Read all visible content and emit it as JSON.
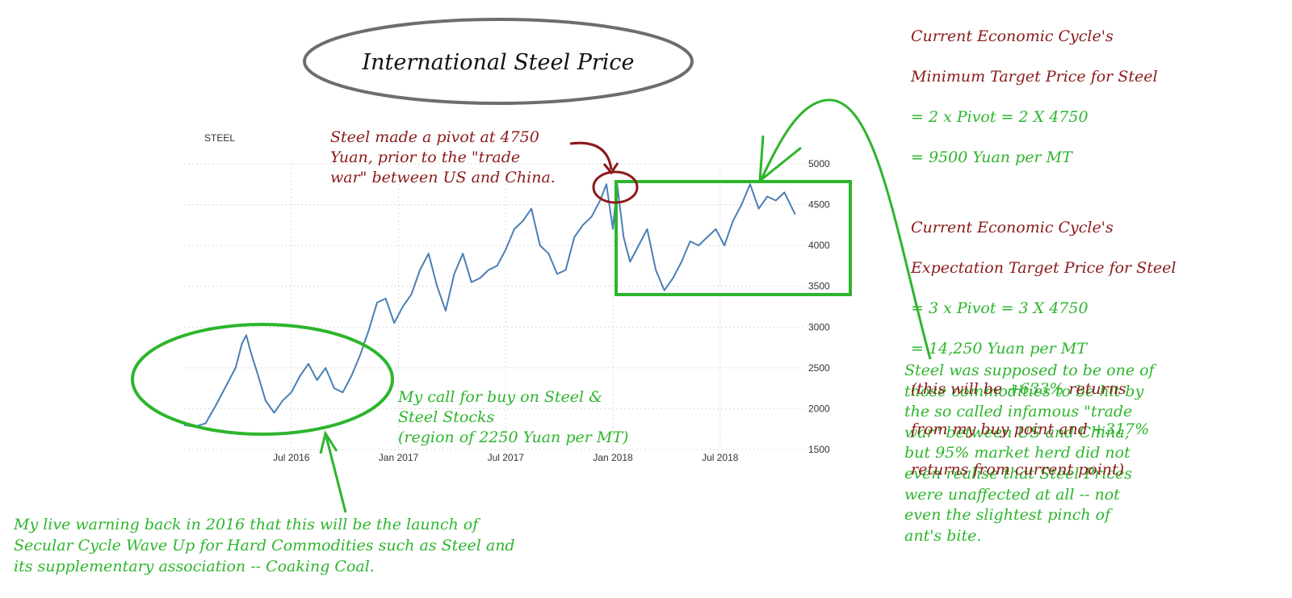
{
  "colors": {
    "line": "#4a7fb5",
    "grid": "#d8d8d8",
    "green": "#2db52d",
    "red": "#8b1a1a",
    "text": "#333333"
  },
  "chart_data": {
    "type": "line",
    "title": "International Steel Price",
    "series_label": "STEEL",
    "xlabel": "",
    "ylabel": "",
    "ylim": [
      1500,
      5000
    ],
    "yticks": [
      1500,
      2000,
      2500,
      3000,
      3500,
      4000,
      4500,
      5000
    ],
    "xlim": [
      2016.0,
      2018.87
    ],
    "xticks": [
      {
        "label": "Jul 2016",
        "x": 2016.5
      },
      {
        "label": "Jan 2017",
        "x": 2017.0
      },
      {
        "label": "Jul 2017",
        "x": 2017.5
      },
      {
        "label": "Jan 2018",
        "x": 2018.0
      },
      {
        "label": "Jul 2018",
        "x": 2018.5
      }
    ],
    "series": [
      {
        "name": "STEEL",
        "x": [
          2016.0,
          2016.05,
          2016.1,
          2016.15,
          2016.2,
          2016.24,
          2016.27,
          2016.29,
          2016.31,
          2016.34,
          2016.38,
          2016.42,
          2016.46,
          2016.5,
          2016.54,
          2016.58,
          2016.62,
          2016.66,
          2016.7,
          2016.74,
          2016.78,
          2016.82,
          2016.86,
          2016.9,
          2016.94,
          2016.98,
          2017.02,
          2017.06,
          2017.1,
          2017.14,
          2017.18,
          2017.22,
          2017.26,
          2017.3,
          2017.34,
          2017.38,
          2017.42,
          2017.46,
          2017.5,
          2017.54,
          2017.58,
          2017.62,
          2017.66,
          2017.7,
          2017.74,
          2017.78,
          2017.82,
          2017.86,
          2017.9,
          2017.94,
          2017.97,
          2018.0,
          2018.02,
          2018.05,
          2018.08,
          2018.12,
          2018.16,
          2018.2,
          2018.24,
          2018.28,
          2018.32,
          2018.36,
          2018.4,
          2018.44,
          2018.48,
          2018.52,
          2018.56,
          2018.6,
          2018.64,
          2018.68,
          2018.72,
          2018.76,
          2018.8,
          2018.85
        ],
        "values": [
          1800,
          1780,
          1820,
          2050,
          2300,
          2500,
          2800,
          2900,
          2700,
          2450,
          2100,
          1950,
          2100,
          2200,
          2400,
          2550,
          2350,
          2500,
          2250,
          2200,
          2400,
          2650,
          2950,
          3300,
          3350,
          3050,
          3250,
          3400,
          3700,
          3900,
          3500,
          3200,
          3650,
          3900,
          3550,
          3600,
          3700,
          3750,
          3950,
          4200,
          4300,
          4450,
          4000,
          3900,
          3650,
          3700,
          4100,
          4250,
          4350,
          4550,
          4750,
          4200,
          4750,
          4100,
          3800,
          4000,
          4200,
          3700,
          3450,
          3600,
          3800,
          4050,
          4000,
          4100,
          4200,
          4000,
          4300,
          4500,
          4750,
          4450,
          4600,
          4550,
          4650,
          4380
        ]
      }
    ]
  },
  "annotations": {
    "target_block": {
      "l1": "Current Economic Cycle's",
      "l2": "Minimum Target Price for Steel",
      "l3": "= 2 x Pivot = 2 X 4750",
      "l4": "= 9500 Yuan per MT",
      "l5": "Current Economic Cycle's",
      "l6": "Expectation Target Price for Steel",
      "l7": "= 3 x Pivot = 3 X 4750",
      "l8": "= 14,250 Yuan per MT",
      "l9a": "(this will be ",
      "l9b": "+633%",
      "l9c": " returns",
      "l10a": "from my buy point and ",
      "l10b": "+317%",
      "l11": "returns from current point)"
    },
    "pivot_note": "Steel made a pivot at 4750\nYuan, prior to the \"trade\nwar\" between US and China.",
    "buy_call": "My call for buy on Steel &\nSteel Stocks\n(region of 2250 Yuan per MT)",
    "live_warning": "My live warning back in 2016 that this will be the launch of\nSecular Cycle Wave Up for Hard Commodities such as Steel and\nits supplementary association -- Coaking Coal.",
    "trade_war_note": "Steel was supposed to be one of\nthose commodities to be hit by\nthe so called infamous \"trade\nwar\" between US and China,\nbut 95% market herd did not\neven realise that Steel Prices\nwere unaffected at all -- not\neven the slightest pinch of\nant's bite."
  }
}
